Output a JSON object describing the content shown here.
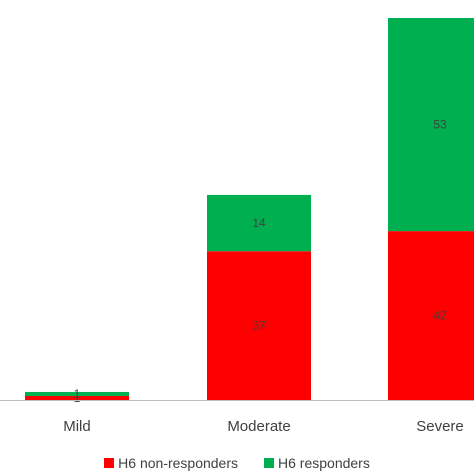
{
  "chart_data": {
    "type": "bar",
    "stacked": true,
    "categories": [
      "Mild",
      "Moderate",
      "Severe"
    ],
    "series": [
      {
        "name": "H6 non-responders",
        "values": [
          1,
          37,
          42
        ],
        "color": "#ff0000"
      },
      {
        "name": "H6 responders",
        "values": [
          1,
          14,
          53
        ],
        "color": "#00b050"
      }
    ],
    "title": "",
    "xlabel": "",
    "ylabel": "",
    "ylim": [
      0,
      95
    ],
    "grid": false,
    "legend": "bottom"
  }
}
